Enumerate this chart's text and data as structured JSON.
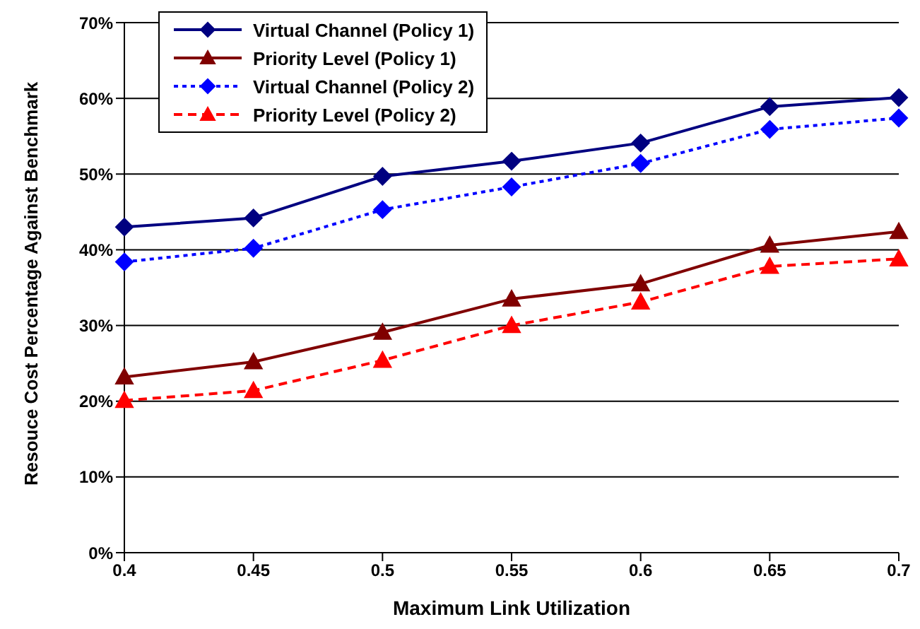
{
  "chart_data": {
    "type": "line",
    "xlabel": "Maximum Link Utilization",
    "ylabel": "Resouce Cost Percentage  Against Benchmark",
    "categories": [
      "0.4",
      "0.45",
      "0.5",
      "0.55",
      "0.6",
      "0.65",
      "0.7"
    ],
    "series": [
      {
        "name": "Virtual Channel (Policy 1)",
        "color": "#000080",
        "marker": "diamond",
        "line_style": "solid",
        "values": [
          43.0,
          44.2,
          49.7,
          51.7,
          54.1,
          58.9,
          60.1
        ]
      },
      {
        "name": "Priority Level (Policy 1)",
        "color": "#800000",
        "marker": "triangle",
        "line_style": "solid",
        "values": [
          23.2,
          25.2,
          29.1,
          33.5,
          35.5,
          40.6,
          42.4
        ]
      },
      {
        "name": "Virtual Channel (Policy 2)",
        "color": "#0000ff",
        "marker": "diamond",
        "line_style": "dotted",
        "values": [
          38.4,
          40.2,
          45.3,
          48.3,
          51.4,
          55.9,
          57.4
        ]
      },
      {
        "name": "Priority Level (Policy 2)",
        "color": "#ff0000",
        "marker": "triangle",
        "line_style": "dashed",
        "values": [
          20.1,
          21.4,
          25.4,
          30.0,
          33.1,
          37.8,
          38.8
        ]
      }
    ],
    "ylim": [
      0,
      70
    ],
    "yticks": [
      {
        "value": 0,
        "label": "0%"
      },
      {
        "value": 10,
        "label": "10%"
      },
      {
        "value": 20,
        "label": "20%"
      },
      {
        "value": 30,
        "label": "30%"
      },
      {
        "value": 40,
        "label": "40%"
      },
      {
        "value": 50,
        "label": "50%"
      },
      {
        "value": 60,
        "label": "60%"
      },
      {
        "value": 70,
        "label": "70%"
      }
    ],
    "grid": "y",
    "legend": "top left"
  }
}
